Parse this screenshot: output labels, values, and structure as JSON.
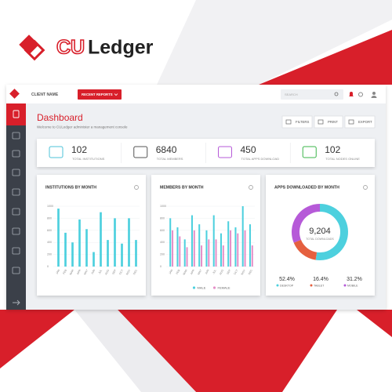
{
  "brand": {
    "prefix": "CU",
    "name": "Ledger"
  },
  "topbar": {
    "client": "CLIENT NAME",
    "recent_button": "RECENT REPORTS",
    "search_placeholder": "SEARCH"
  },
  "page": {
    "title": "Dashboard",
    "subtitle": "Welcome to CULedger administer a management console",
    "actions": [
      "FILTERS",
      "PRINT",
      "EXPORT"
    ]
  },
  "stats": [
    {
      "value": 102,
      "label": "TOTAL INSTITUTIONS"
    },
    {
      "value": 6840,
      "label": "TOTAL MEMBERS"
    },
    {
      "value": 450,
      "label": "TOTAL APPS DOWNLOAD"
    },
    {
      "value": 102,
      "label": "TOTAL NODES ONLINE"
    }
  ],
  "institutions_chart": {
    "type": "bar",
    "title": "INSTITUTIONS BY MONTH",
    "categories": [
      "JAN",
      "FEB",
      "MAR",
      "APR",
      "MAY",
      "JUN",
      "JUL",
      "AUG",
      "SEP",
      "OCT",
      "NOV",
      "DEC"
    ],
    "values": [
      960,
      560,
      400,
      780,
      620,
      240,
      900,
      440,
      800,
      380,
      800,
      440
    ],
    "color": "#4dd0de",
    "ylim": [
      0,
      1000
    ],
    "yticks": [
      0,
      200,
      400,
      600,
      800,
      1000
    ],
    "grid": true
  },
  "members_chart": {
    "type": "bar",
    "title": "MEMBERS BY MONTH",
    "categories": [
      "JAN",
      "FEB",
      "MAR",
      "APR",
      "MAY",
      "JUN",
      "JUL",
      "AUG",
      "SEP",
      "OCT",
      "NOV",
      "DEC"
    ],
    "series": [
      {
        "name": "MALE",
        "color": "#4dd0de",
        "values": [
          800,
          650,
          450,
          850,
          700,
          600,
          850,
          550,
          750,
          650,
          1000,
          700
        ]
      },
      {
        "name": "FEMALE",
        "color": "#e58fc8",
        "values": [
          600,
          500,
          320,
          600,
          350,
          450,
          450,
          350,
          600,
          550,
          600,
          350
        ]
      }
    ],
    "ylim": [
      0,
      1000
    ],
    "yticks": [
      0,
      200,
      400,
      600,
      800,
      1000
    ],
    "grid": true
  },
  "downloads_chart": {
    "type": "donut",
    "title": "APPS DOWNLOADED BY MONTH",
    "total": "9,204",
    "total_label": "TOTAL DOWNLOADS",
    "categories": [
      "DESKTOP",
      "TABLET",
      "MOBILE"
    ],
    "values": [
      52.4,
      16.4,
      31.2
    ],
    "value_labels": [
      "52.4%",
      "16.4%",
      "31.2%"
    ],
    "colors": [
      "#4dd0de",
      "#e5603f",
      "#b65ad8"
    ]
  }
}
